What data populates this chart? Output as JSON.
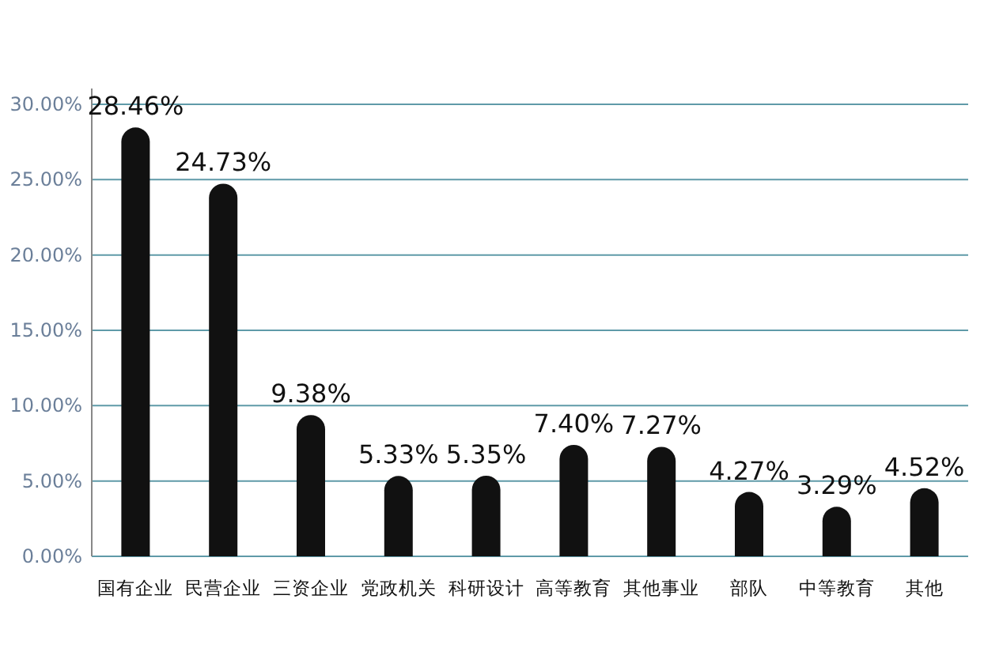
{
  "chart_data": {
    "type": "bar",
    "categories": [
      "国有企业",
      "民营企业",
      "三资企业",
      "党政机关",
      "科研设计",
      "高等教育",
      "其他事业",
      "部队",
      "中等教育",
      "其他"
    ],
    "values": [
      28.46,
      24.73,
      9.38,
      5.33,
      5.35,
      7.4,
      7.27,
      4.27,
      3.29,
      4.52
    ],
    "value_labels": [
      "28.46%",
      "24.73%",
      "9.38%",
      "5.33%",
      "5.35%",
      "7.40%",
      "7.27%",
      "4.27%",
      "3.29%",
      "4.52%"
    ],
    "color": "#111111",
    "ylim": [
      0,
      30
    ],
    "yticks": [
      {
        "value": 0,
        "label": "0.00%"
      },
      {
        "value": 5,
        "label": "5.00%"
      },
      {
        "value": 10,
        "label": "10.00%"
      },
      {
        "value": 15,
        "label": "15.00%"
      },
      {
        "value": 20,
        "label": "20.00%"
      },
      {
        "value": 25,
        "label": "25.00%"
      },
      {
        "value": 30,
        "label": "30.00%"
      }
    ],
    "grid": "y"
  }
}
